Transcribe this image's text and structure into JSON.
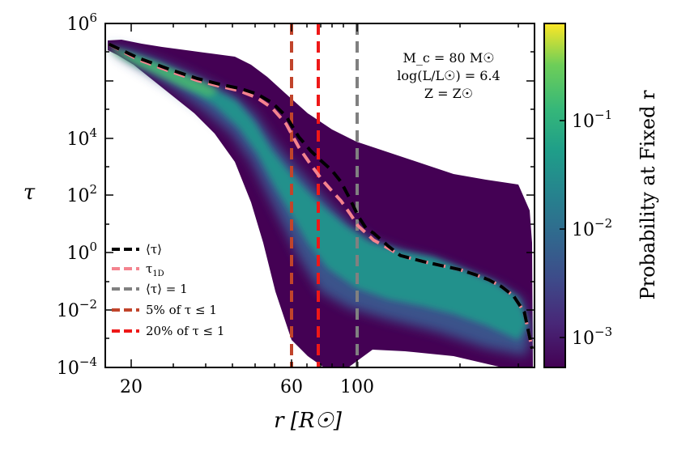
{
  "chart_data": {
    "type": "line",
    "xlabel": "r [R☉]",
    "ylabel": "τ",
    "xscale": "log",
    "yscale": "log",
    "xlim": [
      16,
      300
    ],
    "ylim": [
      0.0001,
      1000000
    ],
    "x_ticks": [
      {
        "value": 20,
        "label": "20"
      },
      {
        "value": 60,
        "label": "60"
      },
      {
        "value": 100,
        "label": "100"
      }
    ],
    "y_ticks": [
      {
        "value": 1000000,
        "base": "10",
        "exp": "6"
      },
      {
        "value": 10000,
        "base": "10",
        "exp": "4"
      },
      {
        "value": 100,
        "base": "10",
        "exp": "2"
      },
      {
        "value": 1,
        "base": "10",
        "exp": "0"
      },
      {
        "value": 0.01,
        "base": "10",
        "exp": "−2"
      },
      {
        "value": 0.0001,
        "base": "10",
        "exp": "−4"
      }
    ],
    "annotations": [
      "M_c = 80 M☉",
      "log(L/L☉) = 6.4",
      "Z = Z☉"
    ],
    "series": [
      {
        "name": "⟨τ⟩",
        "legend": "⟨τ⟩",
        "color": "#000000",
        "style": "dashed",
        "x": [
          16.4,
          20,
          25,
          30,
          35,
          40,
          45,
          50,
          55,
          60,
          65,
          70,
          75,
          80,
          85,
          90,
          95,
          100,
          110,
          120,
          140,
          160,
          180,
          200,
          220,
          240,
          260,
          280,
          295
        ],
        "y": [
          250000,
          100000,
          45000,
          25000,
          17000,
          13000,
          9000,
          5000,
          2000,
          500,
          200,
          100,
          55,
          25,
          8,
          2.5,
          1.1,
          0.8,
          0.35,
          0.18,
          0.12,
          0.09,
          0.07,
          0.05,
          0.035,
          0.022,
          0.012,
          0.004,
          0.00035
        ]
      },
      {
        "name": "τ_1D",
        "legend": "τ",
        "legend_sub": "1D",
        "color": "#f4838e",
        "style": "dashed",
        "x": [
          16.4,
          20,
          25,
          30,
          35,
          40,
          45,
          50,
          55,
          60,
          65,
          70,
          75,
          80,
          85,
          90,
          95,
          100,
          110,
          120,
          140,
          160,
          180,
          200,
          220,
          240,
          260,
          280,
          295
        ],
        "y": [
          250000,
          90000,
          40000,
          22000,
          15000,
          11000,
          7000,
          3500,
          1200,
          250,
          80,
          30,
          14,
          7,
          3,
          1.3,
          0.8,
          0.5,
          0.3,
          0.18,
          0.12,
          0.09,
          0.07,
          0.05,
          0.035,
          0.022,
          0.012,
          0.004,
          0.00035
        ]
      }
    ],
    "vlines": [
      {
        "x": 100,
        "color": "#808080",
        "legend": "⟨τ⟩ = 1"
      },
      {
        "x": 62,
        "color": "#c1442b",
        "legend": "5% of τ ≤ 1"
      },
      {
        "x": 77,
        "color": "#ee1818",
        "legend": "20% of τ ≤ 1"
      }
    ],
    "colorbar": {
      "label": "Probability at Fixed r",
      "scale": "log",
      "range": [
        0.0005,
        0.8
      ],
      "colormap": "viridis",
      "ticks": [
        {
          "value": 0.1,
          "base": "10",
          "exp": "−1"
        },
        {
          "value": 0.01,
          "base": "10",
          "exp": "−2"
        },
        {
          "value": 0.001,
          "base": "10",
          "exp": "−3"
        }
      ]
    },
    "legend_position": "lower-left"
  },
  "colors": {
    "envelope_dark": "#440154",
    "envelope_mid": "#3b528b",
    "envelope_core": "#21918c",
    "envelope_bright": "#5ec962",
    "background": "#ffffff"
  }
}
